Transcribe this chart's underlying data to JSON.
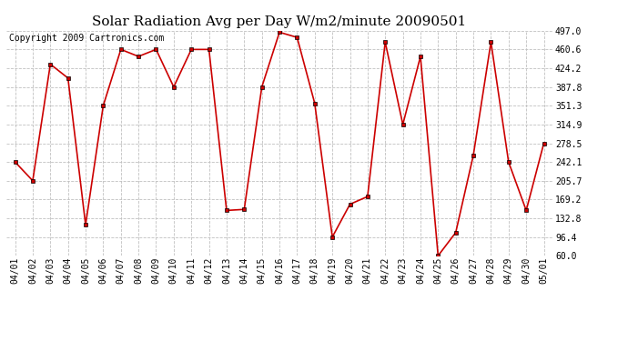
{
  "title": "Solar Radiation Avg per Day W/m2/minute 20090501",
  "copyright": "Copyright 2009 Cartronics.com",
  "dates": [
    "04/01",
    "04/02",
    "04/03",
    "04/04",
    "04/05",
    "04/06",
    "04/07",
    "04/08",
    "04/09",
    "04/10",
    "04/11",
    "04/12",
    "04/13",
    "04/14",
    "04/15",
    "04/16",
    "04/17",
    "04/18",
    "04/19",
    "04/20",
    "04/21",
    "04/22",
    "04/23",
    "04/24",
    "04/25",
    "04/26",
    "04/27",
    "04/28",
    "04/29",
    "04/30",
    "05/01"
  ],
  "values": [
    242.0,
    205.7,
    432.0,
    405.0,
    120.0,
    351.3,
    460.6,
    447.0,
    460.6,
    387.8,
    460.6,
    460.6,
    148.0,
    150.0,
    387.8,
    494.0,
    484.0,
    356.0,
    96.4,
    160.0,
    175.0,
    475.0,
    314.9,
    447.0,
    60.0,
    105.0,
    255.0,
    475.0,
    242.0,
    148.0,
    278.5
  ],
  "ylim": [
    60.0,
    497.0
  ],
  "yticks": [
    60.0,
    96.4,
    132.8,
    169.2,
    205.7,
    242.1,
    278.5,
    314.9,
    351.3,
    387.8,
    424.2,
    460.6,
    497.0
  ],
  "ytick_labels": [
    "60.0",
    "96.4",
    "132.8",
    "169.2",
    "205.7",
    "242.1",
    "278.5",
    "314.9",
    "351.3",
    "387.8",
    "424.2",
    "460.6",
    "497.0"
  ],
  "line_color": "#cc0000",
  "marker_color": "#000000",
  "bg_color": "#ffffff",
  "grid_color": "#c0c0c0",
  "title_fontsize": 11,
  "copyright_fontsize": 7,
  "tick_fontsize": 7
}
